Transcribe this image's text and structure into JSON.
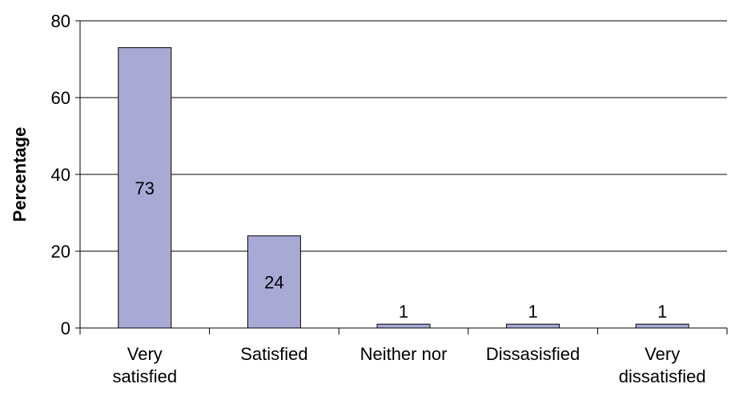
{
  "chart_data": {
    "type": "bar",
    "title": "",
    "xlabel": "",
    "ylabel": "Percentage",
    "categories": [
      [
        "Very",
        "satisfied"
      ],
      [
        "Satisfied"
      ],
      [
        "Neither nor"
      ],
      [
        "Dissasisfied"
      ],
      [
        "Very",
        "dissatisfied"
      ]
    ],
    "values": [
      73,
      24,
      1,
      1,
      1
    ],
    "data_labels": [
      "73",
      "24",
      "1",
      "1",
      "1"
    ],
    "data_label_position": [
      "inside",
      "inside",
      "above",
      "above",
      "above"
    ],
    "ylim": [
      0,
      80
    ],
    "yticks": [
      0,
      20,
      40,
      60,
      80
    ],
    "ytick_labels": [
      "0",
      "20",
      "40",
      "60",
      "80"
    ],
    "grid": true,
    "legend": "none",
    "bar_color": "#a9a9d6",
    "bar_edge_color": "#000000"
  }
}
